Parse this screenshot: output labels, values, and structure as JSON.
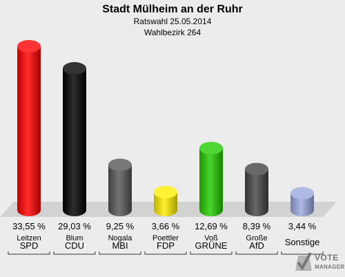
{
  "header": {
    "title": "Stadt Mülheim an der Ruhr",
    "subtitle": "Ratswahl 25.05.2014",
    "district": "Wahlbezirk 264"
  },
  "chart_data": {
    "type": "bar",
    "title": "Stadt Mülheim an der Ruhr",
    "subtitle": "Ratswahl 25.05.2014 / Wahlbezirk 264",
    "categories": [
      "SPD",
      "CDU",
      "MBI",
      "FDP",
      "GRÜNE",
      "AfD",
      "Sonstige"
    ],
    "candidates": [
      "Leitzen",
      "Blum",
      "Nogala",
      "Poettler",
      "Voß",
      "Große",
      ""
    ],
    "values": [
      33.55,
      29.03,
      9.25,
      3.66,
      12.69,
      8.39,
      3.44
    ],
    "value_labels": [
      "33,55 %",
      "29,03 %",
      "9,25 %",
      "3,66 %",
      "12,69 %",
      "8,39 %",
      "3,44 %"
    ],
    "colors": [
      "#ff0000",
      "#000000",
      "#555555",
      "#ffee00",
      "#22cc00",
      "#444444",
      "#9aa9dd"
    ],
    "ylim": [
      0,
      33.55
    ],
    "grid": false,
    "legend": "none"
  },
  "logo": {
    "line1": "VOTE",
    "line2": "MANAGER"
  }
}
